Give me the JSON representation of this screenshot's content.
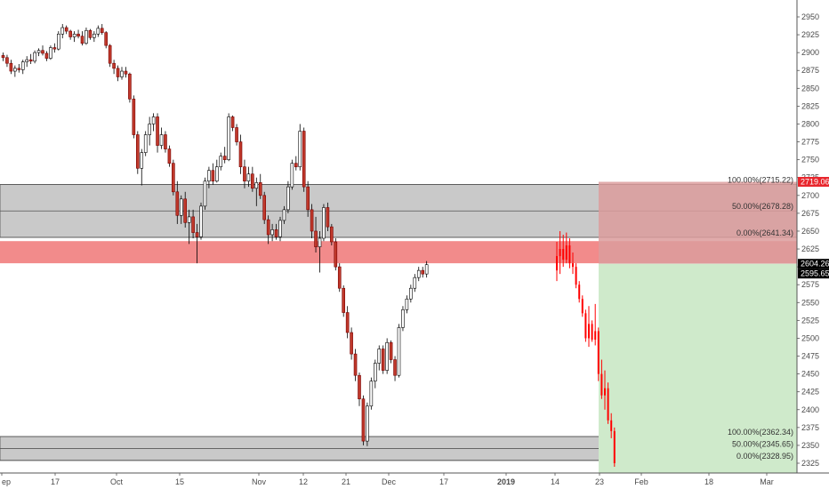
{
  "chart_data": {
    "type": "candlestick",
    "title": "",
    "xlabel": "",
    "ylabel": "",
    "ylim": [
      2316,
      2960
    ],
    "y_ticks": [
      2325,
      2350,
      2375,
      2400,
      2425,
      2450,
      2475,
      2500,
      2525,
      2550,
      2575,
      2600,
      2625,
      2650,
      2675,
      2700,
      2725,
      2750,
      2775,
      2800,
      2825,
      2850,
      2875,
      2900,
      2925,
      2950
    ],
    "x_ticks": [
      "ep",
      "17",
      "Oct",
      "15",
      "Nov",
      "12",
      "21",
      "Dec",
      "17",
      "2019",
      "14",
      "23",
      "Feb",
      "18",
      "Mar"
    ],
    "grid": false,
    "colors": {
      "up_body": "#ffffff",
      "up_border": "#000000",
      "down_body": "#c0392b",
      "down_border": "#7a0000",
      "projection": "#ff0000"
    },
    "price_labels": [
      {
        "text": "2719.06",
        "value": 2719.06,
        "bg": "#e8262c",
        "fg": "#ffffff"
      },
      {
        "text": "2604.26",
        "value": 2604.26,
        "bg": "#000000",
        "fg": "#ffffff"
      },
      {
        "text": "2595.65",
        "value": 2595.65,
        "bg": "#000000",
        "fg": "#ffffff"
      }
    ],
    "zones": [
      {
        "name": "upper supply zone",
        "top": 2715.22,
        "bottom": 2641.34,
        "fill": "#c9c9c9",
        "levels": [
          {
            "text": "100.00%(2715.22)",
            "value": 2715.22
          },
          {
            "text": "50.00%(2678.28)",
            "value": 2678.28
          },
          {
            "text": "0.00%(2641.34)",
            "value": 2641.34
          }
        ]
      },
      {
        "name": "red band",
        "top": 2636,
        "bottom": 2605,
        "fill": "#f28b8b"
      },
      {
        "name": "lower demand zone",
        "top": 2362.34,
        "bottom": 2328.95,
        "fill": "#c9c9c9",
        "levels": [
          {
            "text": "100.00%(2362.34)",
            "value": 2362.34
          },
          {
            "text": "50.00%(2345.65)",
            "value": 2345.65
          },
          {
            "text": "0.00%(2328.95)",
            "value": 2328.95
          }
        ]
      }
    ],
    "position": {
      "entry": 2604.26,
      "stop": 2719.06,
      "target": 2316,
      "stop_fill": "#dc9c9c",
      "target_fill": "#cfeacb"
    },
    "candles": [
      {
        "o": 2896,
        "h": 2900,
        "l": 2888,
        "c": 2893
      },
      {
        "o": 2893,
        "h": 2897,
        "l": 2880,
        "c": 2885
      },
      {
        "o": 2885,
        "h": 2890,
        "l": 2870,
        "c": 2874
      },
      {
        "o": 2874,
        "h": 2882,
        "l": 2866,
        "c": 2878
      },
      {
        "o": 2878,
        "h": 2884,
        "l": 2872,
        "c": 2876
      },
      {
        "o": 2876,
        "h": 2890,
        "l": 2870,
        "c": 2887
      },
      {
        "o": 2887,
        "h": 2895,
        "l": 2880,
        "c": 2890
      },
      {
        "o": 2890,
        "h": 2898,
        "l": 2884,
        "c": 2888
      },
      {
        "o": 2888,
        "h": 2903,
        "l": 2885,
        "c": 2900
      },
      {
        "o": 2900,
        "h": 2906,
        "l": 2895,
        "c": 2903
      },
      {
        "o": 2903,
        "h": 2910,
        "l": 2896,
        "c": 2899
      },
      {
        "o": 2899,
        "h": 2902,
        "l": 2888,
        "c": 2892
      },
      {
        "o": 2892,
        "h": 2910,
        "l": 2890,
        "c": 2907
      },
      {
        "o": 2907,
        "h": 2913,
        "l": 2900,
        "c": 2905
      },
      {
        "o": 2905,
        "h": 2930,
        "l": 2903,
        "c": 2926
      },
      {
        "o": 2926,
        "h": 2940,
        "l": 2920,
        "c": 2935
      },
      {
        "o": 2935,
        "h": 2938,
        "l": 2926,
        "c": 2930
      },
      {
        "o": 2930,
        "h": 2932,
        "l": 2918,
        "c": 2922
      },
      {
        "o": 2922,
        "h": 2930,
        "l": 2915,
        "c": 2926
      },
      {
        "o": 2926,
        "h": 2932,
        "l": 2920,
        "c": 2923
      },
      {
        "o": 2923,
        "h": 2930,
        "l": 2910,
        "c": 2913
      },
      {
        "o": 2913,
        "h": 2935,
        "l": 2911,
        "c": 2931
      },
      {
        "o": 2931,
        "h": 2933,
        "l": 2918,
        "c": 2921
      },
      {
        "o": 2921,
        "h": 2930,
        "l": 2915,
        "c": 2926
      },
      {
        "o": 2926,
        "h": 2938,
        "l": 2922,
        "c": 2934
      },
      {
        "o": 2934,
        "h": 2940,
        "l": 2925,
        "c": 2928
      },
      {
        "o": 2928,
        "h": 2930,
        "l": 2906,
        "c": 2910
      },
      {
        "o": 2910,
        "h": 2912,
        "l": 2880,
        "c": 2885
      },
      {
        "o": 2885,
        "h": 2890,
        "l": 2870,
        "c": 2878
      },
      {
        "o": 2878,
        "h": 2882,
        "l": 2860,
        "c": 2866
      },
      {
        "o": 2866,
        "h": 2880,
        "l": 2862,
        "c": 2874
      },
      {
        "o": 2874,
        "h": 2880,
        "l": 2865,
        "c": 2870
      },
      {
        "o": 2870,
        "h": 2872,
        "l": 2830,
        "c": 2835
      },
      {
        "o": 2835,
        "h": 2840,
        "l": 2780,
        "c": 2785
      },
      {
        "o": 2785,
        "h": 2790,
        "l": 2730,
        "c": 2738
      },
      {
        "o": 2738,
        "h": 2765,
        "l": 2714,
        "c": 2760
      },
      {
        "o": 2760,
        "h": 2790,
        "l": 2755,
        "c": 2785
      },
      {
        "o": 2785,
        "h": 2810,
        "l": 2770,
        "c": 2800
      },
      {
        "o": 2800,
        "h": 2815,
        "l": 2790,
        "c": 2810
      },
      {
        "o": 2810,
        "h": 2815,
        "l": 2760,
        "c": 2770
      },
      {
        "o": 2770,
        "h": 2795,
        "l": 2765,
        "c": 2785
      },
      {
        "o": 2785,
        "h": 2790,
        "l": 2760,
        "c": 2765
      },
      {
        "o": 2765,
        "h": 2770,
        "l": 2740,
        "c": 2745
      },
      {
        "o": 2745,
        "h": 2750,
        "l": 2700,
        "c": 2705
      },
      {
        "o": 2705,
        "h": 2720,
        "l": 2660,
        "c": 2672
      },
      {
        "o": 2672,
        "h": 2700,
        "l": 2660,
        "c": 2695
      },
      {
        "o": 2695,
        "h": 2705,
        "l": 2655,
        "c": 2662
      },
      {
        "o": 2662,
        "h": 2680,
        "l": 2632,
        "c": 2670
      },
      {
        "o": 2670,
        "h": 2680,
        "l": 2640,
        "c": 2648
      },
      {
        "o": 2648,
        "h": 2660,
        "l": 2605,
        "c": 2642
      },
      {
        "o": 2642,
        "h": 2690,
        "l": 2638,
        "c": 2685
      },
      {
        "o": 2685,
        "h": 2725,
        "l": 2680,
        "c": 2720
      },
      {
        "o": 2720,
        "h": 2740,
        "l": 2710,
        "c": 2735
      },
      {
        "o": 2735,
        "h": 2745,
        "l": 2715,
        "c": 2720
      },
      {
        "o": 2720,
        "h": 2750,
        "l": 2718,
        "c": 2740
      },
      {
        "o": 2740,
        "h": 2760,
        "l": 2735,
        "c": 2755
      },
      {
        "o": 2755,
        "h": 2768,
        "l": 2745,
        "c": 2750
      },
      {
        "o": 2750,
        "h": 2815,
        "l": 2748,
        "c": 2810
      },
      {
        "o": 2810,
        "h": 2812,
        "l": 2790,
        "c": 2795
      },
      {
        "o": 2795,
        "h": 2800,
        "l": 2770,
        "c": 2775
      },
      {
        "o": 2775,
        "h": 2785,
        "l": 2730,
        "c": 2740
      },
      {
        "o": 2740,
        "h": 2750,
        "l": 2710,
        "c": 2720
      },
      {
        "o": 2720,
        "h": 2740,
        "l": 2712,
        "c": 2730
      },
      {
        "o": 2730,
        "h": 2740,
        "l": 2705,
        "c": 2710
      },
      {
        "o": 2710,
        "h": 2725,
        "l": 2685,
        "c": 2718
      },
      {
        "o": 2718,
        "h": 2730,
        "l": 2695,
        "c": 2700
      },
      {
        "o": 2700,
        "h": 2705,
        "l": 2660,
        "c": 2666
      },
      {
        "o": 2666,
        "h": 2672,
        "l": 2632,
        "c": 2645
      },
      {
        "o": 2645,
        "h": 2660,
        "l": 2636,
        "c": 2652
      },
      {
        "o": 2652,
        "h": 2660,
        "l": 2638,
        "c": 2642
      },
      {
        "o": 2642,
        "h": 2670,
        "l": 2636,
        "c": 2665
      },
      {
        "o": 2665,
        "h": 2685,
        "l": 2660,
        "c": 2680
      },
      {
        "o": 2680,
        "h": 2720,
        "l": 2675,
        "c": 2712
      },
      {
        "o": 2712,
        "h": 2750,
        "l": 2708,
        "c": 2745
      },
      {
        "o": 2745,
        "h": 2755,
        "l": 2735,
        "c": 2740
      },
      {
        "o": 2740,
        "h": 2800,
        "l": 2735,
        "c": 2790
      },
      {
        "o": 2790,
        "h": 2795,
        "l": 2705,
        "c": 2712
      },
      {
        "o": 2712,
        "h": 2720,
        "l": 2670,
        "c": 2680
      },
      {
        "o": 2680,
        "h": 2688,
        "l": 2640,
        "c": 2650
      },
      {
        "o": 2650,
        "h": 2670,
        "l": 2620,
        "c": 2628
      },
      {
        "o": 2628,
        "h": 2650,
        "l": 2592,
        "c": 2640
      },
      {
        "o": 2640,
        "h": 2688,
        "l": 2636,
        "c": 2683
      },
      {
        "o": 2683,
        "h": 2690,
        "l": 2650,
        "c": 2656
      },
      {
        "o": 2656,
        "h": 2660,
        "l": 2630,
        "c": 2635
      },
      {
        "o": 2635,
        "h": 2640,
        "l": 2595,
        "c": 2600
      },
      {
        "o": 2600,
        "h": 2605,
        "l": 2565,
        "c": 2570
      },
      {
        "o": 2570,
        "h": 2574,
        "l": 2530,
        "c": 2536
      },
      {
        "o": 2536,
        "h": 2545,
        "l": 2500,
        "c": 2508
      },
      {
        "o": 2508,
        "h": 2515,
        "l": 2470,
        "c": 2478
      },
      {
        "o": 2478,
        "h": 2485,
        "l": 2440,
        "c": 2448
      },
      {
        "o": 2448,
        "h": 2452,
        "l": 2405,
        "c": 2415
      },
      {
        "o": 2415,
        "h": 2420,
        "l": 2350,
        "c": 2356
      },
      {
        "o": 2356,
        "h": 2410,
        "l": 2349,
        "c": 2405
      },
      {
        "o": 2405,
        "h": 2445,
        "l": 2400,
        "c": 2440
      },
      {
        "o": 2440,
        "h": 2470,
        "l": 2430,
        "c": 2465
      },
      {
        "o": 2465,
        "h": 2490,
        "l": 2455,
        "c": 2485
      },
      {
        "o": 2485,
        "h": 2490,
        "l": 2450,
        "c": 2455
      },
      {
        "o": 2455,
        "h": 2500,
        "l": 2450,
        "c": 2494
      },
      {
        "o": 2494,
        "h": 2497,
        "l": 2465,
        "c": 2470
      },
      {
        "o": 2470,
        "h": 2475,
        "l": 2440,
        "c": 2448
      },
      {
        "o": 2448,
        "h": 2520,
        "l": 2445,
        "c": 2515
      },
      {
        "o": 2515,
        "h": 2545,
        "l": 2510,
        "c": 2540
      },
      {
        "o": 2540,
        "h": 2560,
        "l": 2535,
        "c": 2555
      },
      {
        "o": 2555,
        "h": 2575,
        "l": 2550,
        "c": 2570
      },
      {
        "o": 2570,
        "h": 2590,
        "l": 2565,
        "c": 2585
      },
      {
        "o": 2585,
        "h": 2600,
        "l": 2580,
        "c": 2595
      },
      {
        "o": 2595,
        "h": 2600,
        "l": 2585,
        "c": 2590
      },
      {
        "o": 2590,
        "h": 2608,
        "l": 2585,
        "c": 2603
      }
    ],
    "projection": [
      {
        "o": 2595,
        "h": 2635,
        "l": 2580,
        "c": 2615
      },
      {
        "o": 2615,
        "h": 2650,
        "l": 2590,
        "c": 2625
      },
      {
        "o": 2625,
        "h": 2645,
        "l": 2600,
        "c": 2610
      },
      {
        "o": 2610,
        "h": 2648,
        "l": 2605,
        "c": 2630
      },
      {
        "o": 2630,
        "h": 2640,
        "l": 2598,
        "c": 2605
      },
      {
        "o": 2605,
        "h": 2620,
        "l": 2590,
        "c": 2600
      },
      {
        "o": 2600,
        "h": 2605,
        "l": 2570,
        "c": 2575
      },
      {
        "o": 2575,
        "h": 2580,
        "l": 2550,
        "c": 2555
      },
      {
        "o": 2555,
        "h": 2560,
        "l": 2530,
        "c": 2535
      },
      {
        "o": 2535,
        "h": 2540,
        "l": 2495,
        "c": 2500
      },
      {
        "o": 2500,
        "h": 2545,
        "l": 2488,
        "c": 2520
      },
      {
        "o": 2520,
        "h": 2525,
        "l": 2495,
        "c": 2498
      },
      {
        "o": 2498,
        "h": 2548,
        "l": 2490,
        "c": 2510
      },
      {
        "o": 2510,
        "h": 2515,
        "l": 2440,
        "c": 2450
      },
      {
        "o": 2450,
        "h": 2470,
        "l": 2415,
        "c": 2420
      },
      {
        "o": 2420,
        "h": 2455,
        "l": 2400,
        "c": 2430
      },
      {
        "o": 2430,
        "h": 2438,
        "l": 2380,
        "c": 2385
      },
      {
        "o": 2385,
        "h": 2395,
        "l": 2360,
        "c": 2370
      },
      {
        "o": 2370,
        "h": 2375,
        "l": 2320,
        "c": 2325
      }
    ]
  }
}
